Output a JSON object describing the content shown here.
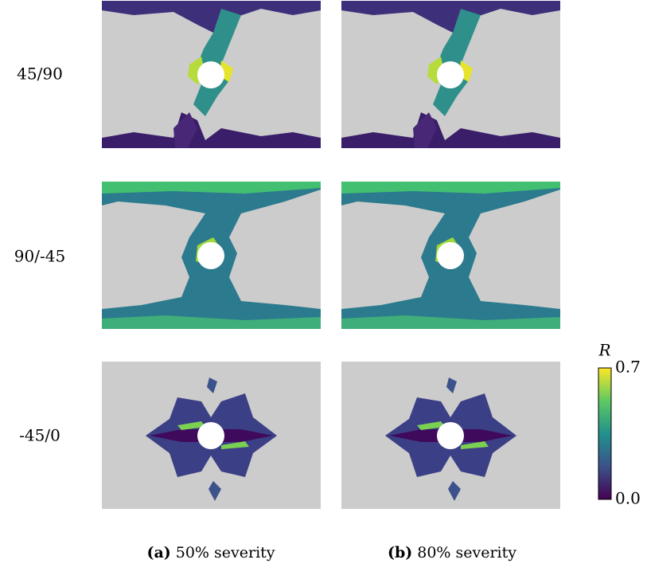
{
  "rows": [
    {
      "label": "45/90"
    },
    {
      "label": "90/-45"
    },
    {
      "label": "-45/0"
    }
  ],
  "captions": [
    {
      "tag": "(a)",
      "text": "50% severity"
    },
    {
      "tag": "(b)",
      "text": "80% severity"
    }
  ],
  "colorbar": {
    "label": "R",
    "range": [
      0,
      0.7
    ],
    "ticks": [
      {
        "value": 0,
        "label": "0.0"
      },
      {
        "value": 0.7,
        "label": "0.7"
      }
    ]
  }
}
